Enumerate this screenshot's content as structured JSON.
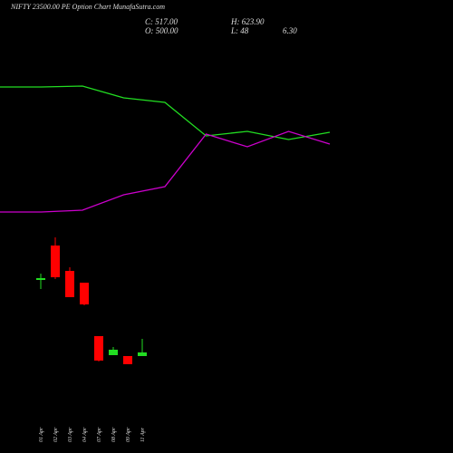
{
  "chart_data": {
    "type": "candlestick",
    "title": "NIFTY 23500.00 PE Option Chart MunafaSutra.com",
    "close_label": "C: 517.00",
    "high_label": "H: 623.90",
    "open_label": "O: 500.00",
    "low_label": "L: 48",
    "change_label": "6.30",
    "categories": [
      "01 Apr",
      "02 Apr",
      "03 Apr",
      "04 Apr",
      "07 Apr",
      "08 Apr",
      "09 Apr",
      "11 Apr"
    ],
    "open": [
      191,
      229,
      201,
      188,
      129,
      108,
      107,
      107
    ],
    "high": [
      198,
      238,
      205,
      188,
      129,
      117,
      107,
      126
    ],
    "low": [
      181,
      192,
      172,
      163,
      101,
      108,
      98,
      107
    ],
    "close": [
      193,
      194,
      172,
      164,
      102,
      114,
      98,
      111
    ],
    "up_color": "#22dd22",
    "down_color": "#ff0000",
    "ylim": [
      0,
      500
    ],
    "lines": {
      "x": [
        0,
        1,
        2,
        3,
        4,
        5,
        6,
        7,
        8
      ],
      "series": [
        {
          "color": "#22dd22",
          "values": [
            404,
            404,
            405,
            392,
            387,
            350,
            355,
            346,
            354
          ]
        },
        {
          "color": "#cc00cc",
          "values": [
            266,
            266,
            268,
            285,
            294,
            352,
            338,
            355,
            341
          ]
        }
      ]
    }
  }
}
